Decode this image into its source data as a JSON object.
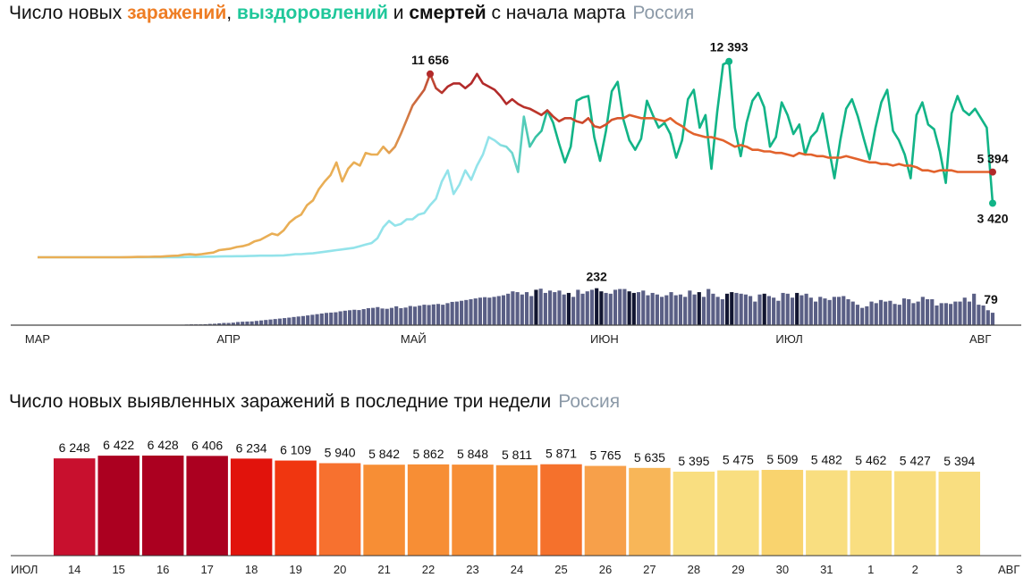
{
  "top_chart": {
    "title": {
      "part1": "Число новых ",
      "infections": "заражений",
      "sep1": ", ",
      "recoveries": "выздоровлений",
      "sep2": " и ",
      "deaths": "смертей",
      "part2": " с начала марта",
      "region": "Россия"
    },
    "colors": {
      "infections_early": "#e9ae55",
      "infections_peak": "#b22a2a",
      "infections_late": "#e2622c",
      "recoveries_early": "#93e3ea",
      "recoveries_late": "#12b487",
      "deaths_bar": "#5a5f85",
      "deaths_bar_dark": "#111530"
    },
    "annotations": {
      "inf_max": "11 656",
      "rec_max": "12 393",
      "deaths_max": "232",
      "inf_last": "5 394",
      "rec_last": "3 420",
      "deaths_last": "79"
    }
  },
  "chart_data": [
    {
      "type": "line",
      "x_start": "2020-03-01",
      "x_end": "2020-08-03",
      "x_ticks": [
        "МАР",
        "АПР",
        "МАЙ",
        "ИЮН",
        "ИЮЛ",
        "АВГ"
      ],
      "ylim": [
        0,
        13000
      ],
      "series": [
        {
          "name": "заражений",
          "values": [
            0,
            0,
            0,
            0,
            0,
            0,
            0,
            0,
            0,
            0,
            0,
            0,
            0,
            0,
            0,
            5,
            10,
            20,
            20,
            30,
            40,
            40,
            70,
            90,
            100,
            170,
            190,
            160,
            200,
            250,
            300,
            450,
            500,
            550,
            650,
            700,
            800,
            1000,
            1100,
            1300,
            1500,
            1400,
            1700,
            2200,
            2500,
            2700,
            3300,
            3600,
            4300,
            4800,
            5200,
            6000,
            4800,
            5600,
            6000,
            5800,
            6600,
            6500,
            6500,
            7000,
            6600,
            7000,
            7800,
            8700,
            9600,
            10100,
            10600,
            11600,
            10700,
            10400,
            10800,
            11000,
            11000,
            10700,
            11000,
            11600,
            11000,
            10800,
            10600,
            10200,
            9700,
            10000,
            9700,
            9500,
            9400,
            9200,
            9000,
            9300,
            8900,
            8600,
            8800,
            8800,
            8600,
            8500,
            8800,
            8300,
            8200,
            8400,
            8700,
            8800,
            8800,
            9000,
            8900,
            8800,
            8800,
            8800,
            8700,
            8600,
            8800,
            8500,
            8300,
            8000,
            7800,
            7700,
            7600,
            7600,
            7500,
            7400,
            7200,
            7000,
            7100,
            7000,
            6800,
            6800,
            6700,
            6700,
            6600,
            6600,
            6500,
            6400,
            6600,
            6500,
            6500,
            6400,
            6400,
            6300,
            6300,
            6300,
            6400,
            6300,
            6200,
            6100,
            6000,
            6000,
            5900,
            5900,
            5800,
            5900,
            5800,
            5800,
            5700,
            5500,
            5500,
            5400,
            5500,
            5500,
            5500,
            5400,
            5400,
            5400,
            5400,
            5400,
            5400,
            5394
          ]
        },
        {
          "name": "выздоровлений",
          "values": [
            0,
            0,
            0,
            0,
            0,
            0,
            0,
            0,
            0,
            0,
            0,
            0,
            0,
            0,
            0,
            0,
            0,
            0,
            0,
            0,
            0,
            0,
            0,
            0,
            0,
            10,
            20,
            20,
            30,
            40,
            40,
            50,
            60,
            60,
            70,
            70,
            80,
            90,
            100,
            100,
            100,
            110,
            120,
            150,
            200,
            200,
            230,
            250,
            300,
            350,
            400,
            450,
            500,
            550,
            600,
            700,
            800,
            900,
            1200,
            1900,
            2300,
            2000,
            2100,
            2400,
            2400,
            2700,
            2800,
            3300,
            3700,
            4800,
            5500,
            4000,
            4600,
            5500,
            4900,
            5800,
            6500,
            7600,
            7400,
            7100,
            7000,
            6600,
            5400,
            8900,
            7000,
            7600,
            8000,
            9300,
            8500,
            7200,
            6000,
            7000,
            9900,
            10100,
            10200,
            7600,
            6100,
            8000,
            10500,
            11100,
            8700,
            7400,
            6800,
            7500,
            9900,
            9000,
            8200,
            8500,
            7800,
            6300,
            7400,
            10000,
            10600,
            8200,
            9000,
            5600,
            9200,
            12200,
            12393,
            8200,
            6400,
            8500,
            9900,
            10400,
            9500,
            7000,
            7600,
            9800,
            9000,
            7800,
            8400,
            6500,
            7600,
            8000,
            9100,
            7000,
            5000,
            7400,
            9400,
            10000,
            8900,
            7500,
            6200,
            8200,
            9800,
            10600,
            8000,
            7400,
            6500,
            5000,
            9000,
            9800,
            8400,
            8100,
            6700,
            4700,
            9100,
            10200,
            9300,
            9000,
            9400,
            8800,
            8200,
            3420
          ]
        }
      ]
    },
    {
      "type": "bar",
      "name": "смертей",
      "x_start": "2020-03-01",
      "ylim": [
        0,
        250
      ],
      "values": [
        0,
        0,
        0,
        0,
        0,
        0,
        0,
        0,
        0,
        0,
        0,
        0,
        0,
        0,
        0,
        0,
        0,
        0,
        0,
        0,
        0,
        0,
        0,
        0,
        0,
        0,
        0,
        0,
        0,
        0,
        1,
        3,
        4,
        5,
        5,
        5,
        6,
        8,
        9,
        12,
        14,
        14,
        16,
        20,
        22,
        23,
        24,
        27,
        30,
        33,
        36,
        39,
        42,
        45,
        48,
        52,
        55,
        58,
        62,
        66,
        70,
        74,
        78,
        80,
        82,
        88,
        92,
        95,
        98,
        96,
        102,
        108,
        110,
        115,
        106,
        104,
        110,
        120,
        108,
        112,
        122,
        118,
        124,
        130,
        128,
        132,
        135,
        130,
        140,
        148,
        150,
        155,
        160,
        165,
        170,
        175,
        178,
        175,
        180,
        185,
        190,
        200,
        215,
        210,
        195,
        210,
        185,
        225,
        232,
        205,
        220,
        210,
        220,
        195,
        205,
        180,
        225,
        200,
        215,
        225,
        235,
        215,
        205,
        200,
        225,
        230,
        230,
        215,
        205,
        210,
        220,
        190,
        205,
        195,
        180,
        190,
        210,
        190,
        195,
        180,
        220,
        195,
        210,
        180,
        230,
        200,
        180,
        165,
        200,
        210,
        205,
        200,
        195,
        185,
        150,
        195,
        200,
        185,
        175,
        155,
        205,
        200,
        175,
        205,
        190,
        200,
        175,
        150,
        180,
        170,
        160,
        180,
        180,
        185,
        165,
        150,
        130,
        110,
        120,
        150,
        140,
        160,
        150,
        155,
        135,
        130,
        170,
        165,
        140,
        150,
        180,
        165,
        165,
        125,
        140,
        140,
        135,
        150,
        150,
        175,
        150,
        200,
        130,
        125,
        95,
        79
      ]
    },
    {
      "type": "bar",
      "title": "Число новых выявленных заражений в последние три недели",
      "region": "Россия",
      "start_label": "ИЮЛ",
      "end_label": "АВГ",
      "categories": [
        "14",
        "15",
        "16",
        "17",
        "18",
        "19",
        "20",
        "21",
        "22",
        "23",
        "24",
        "25",
        "26",
        "27",
        "28",
        "29",
        "30",
        "31",
        "1",
        "2",
        "3"
      ],
      "values": [
        6248,
        6422,
        6428,
        6406,
        6234,
        6109,
        5940,
        5842,
        5862,
        5848,
        5811,
        5871,
        5765,
        5635,
        5395,
        5475,
        5509,
        5482,
        5462,
        5427,
        5394
      ],
      "value_labels": [
        "6 248",
        "6 422",
        "6 428",
        "6 406",
        "6 234",
        "6 109",
        "5 940",
        "5 842",
        "5 862",
        "5 848",
        "5 811",
        "5 871",
        "5 765",
        "5 635",
        "5 395",
        "5 475",
        "5 509",
        "5 482",
        "5 462",
        "5 427",
        "5 394"
      ],
      "bar_colors": [
        "#c8102e",
        "#ab0020",
        "#ab0020",
        "#ab0020",
        "#e1130c",
        "#f03610",
        "#f7712f",
        "#f78e35",
        "#f78e35",
        "#f78e35",
        "#f78e35",
        "#f5712c",
        "#f7a04a",
        "#f8b658",
        "#f9de80",
        "#f9de80",
        "#f9d36e",
        "#f9de80",
        "#f9de80",
        "#f9de80",
        "#f9de80"
      ],
      "weekend_color": "#e03b1e",
      "weekend_categories": [
        "18",
        "19",
        "25",
        "26",
        "1",
        "2"
      ]
    }
  ]
}
